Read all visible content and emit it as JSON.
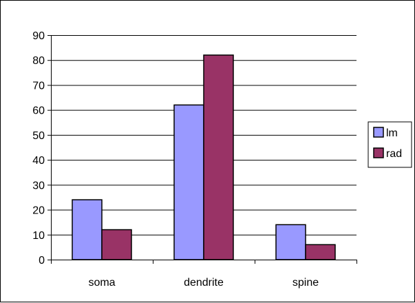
{
  "chart_data": {
    "type": "bar",
    "categories": [
      "soma",
      "dendrite",
      "spine"
    ],
    "series": [
      {
        "name": "lm",
        "color": "#9999FF",
        "values": [
          24,
          62,
          14
        ]
      },
      {
        "name": "rad",
        "color": "#993366",
        "values": [
          12,
          82,
          6
        ]
      }
    ],
    "ylim": [
      0,
      90
    ],
    "yticks": [
      0,
      10,
      20,
      30,
      40,
      50,
      60,
      70,
      80,
      90
    ],
    "grid": true,
    "legend": "right"
  }
}
